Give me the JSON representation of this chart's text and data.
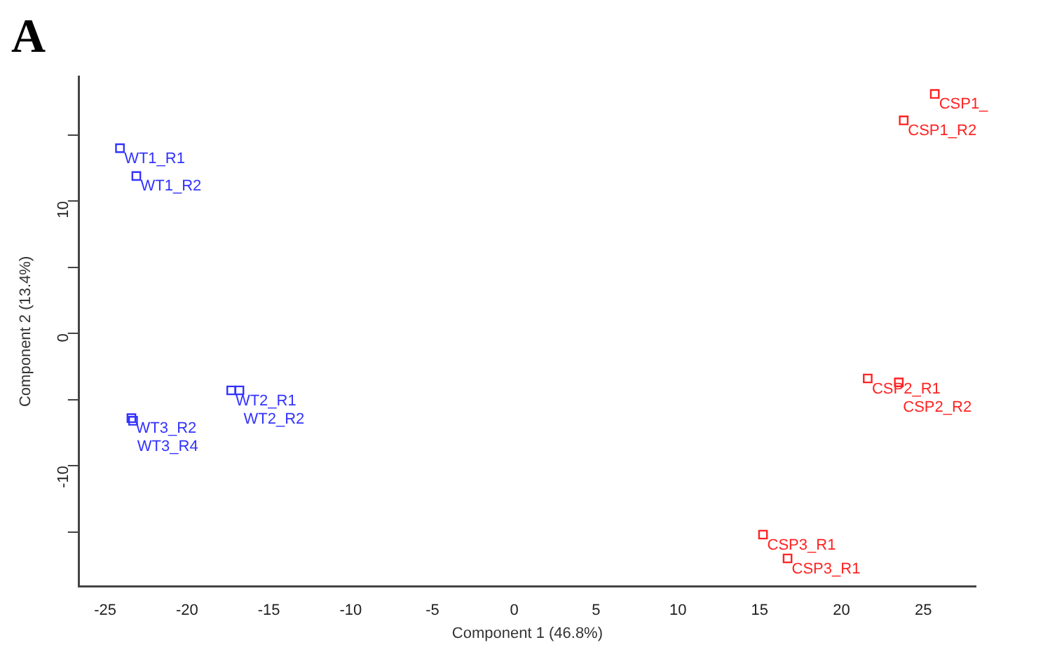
{
  "chart_data": {
    "type": "scatter",
    "title": "A",
    "xlabel": "Component 1 (46.8%)",
    "ylabel": "Component 2 (13.4%)",
    "series": [
      {
        "color": "#3333ff",
        "x": [
          -24.1,
          -23.1,
          -17.3,
          -16.8,
          -23.4,
          -23.3
        ],
        "values": [
          14.0,
          11.9,
          -4.3,
          -4.3,
          -6.4,
          -6.6
        ]
      },
      {
        "color": "#ff2222",
        "x": [
          25.7,
          23.8,
          21.6,
          23.5,
          15.2,
          16.7
        ],
        "values": [
          18.1,
          16.1,
          -3.4,
          -3.7,
          -15.2,
          -17.0
        ]
      }
    ],
    "annotations": [
      {
        "text": "WT1_R1",
        "x": -24.1,
        "y": 14.0
      },
      {
        "text": "WT1_R2",
        "x": -23.1,
        "y": 11.9
      },
      {
        "text": "WT2_R1",
        "x": -17.3,
        "y": -4.3
      },
      {
        "text": "WT2_R2",
        "x": -16.8,
        "y": -4.3
      },
      {
        "text": "WT3_R2",
        "x": -23.4,
        "y": -6.4
      },
      {
        "text": "WT3_R4",
        "x": -23.3,
        "y": -6.6
      },
      {
        "text": "CSP1_",
        "x": 25.7,
        "y": 18.1
      },
      {
        "text": "CSP1_R2",
        "x": 23.8,
        "y": 16.1
      },
      {
        "text": "CSP2_R1",
        "x": 21.6,
        "y": -3.4
      },
      {
        "text": "CSP2_R2",
        "x": 23.5,
        "y": -3.7
      },
      {
        "text": "CSP3_R1",
        "x": 15.2,
        "y": -15.2
      },
      {
        "text": "CSP3_R1",
        "x": 16.7,
        "y": -17.0
      }
    ],
    "xlim": [
      -26.6,
      28.2
    ],
    "xticks": [
      -25,
      -20,
      -15,
      -10,
      -5,
      0,
      5,
      10,
      15,
      20,
      25
    ],
    "ylim": [
      -19.1,
      19.4
    ],
    "yticks": [
      {
        "value": -15,
        "label": null
      },
      -10,
      {
        "value": -5,
        "label": null
      },
      0,
      {
        "value": 5,
        "label": null
      },
      10,
      {
        "value": 15,
        "label": null
      }
    ],
    "marker": "square",
    "grid": false,
    "legend": false
  }
}
